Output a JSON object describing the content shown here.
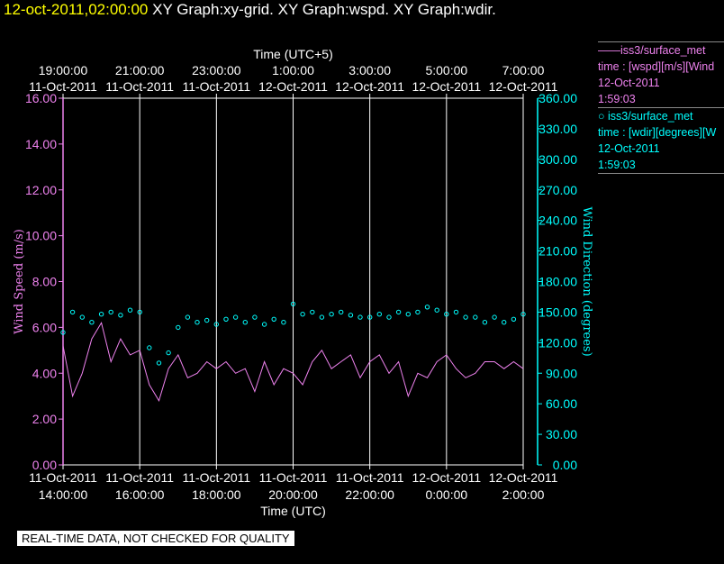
{
  "header": {
    "timestamp": "12-oct-2011,02:00:00",
    "graphs": "XY Graph:xy-grid.  XY Graph:wspd.  XY Graph:wdir."
  },
  "legend": [
    {
      "line1": "——iss3/surface_met",
      "line2": "time : [wspd][m/s][Wind",
      "line3": "12-Oct-2011",
      "line4": "1:59:03",
      "color": "#ee82ee"
    },
    {
      "line1": "○ iss3/surface_met",
      "line2": "time : [wdir][degrees][W",
      "line3": "12-Oct-2011",
      "line4": "1:59:03",
      "color": "#00ffff"
    }
  ],
  "footer": "REAL-TIME DATA, NOT CHECKED FOR QUALITY",
  "chart_data": {
    "type": "line",
    "colors": {
      "left_axis": "#ee82ee",
      "right_axis": "#00ffff",
      "grid": "#ffffff",
      "background": "#000000"
    },
    "top_axis_title": "Time (UTC+5)",
    "bottom_axis_title": "Time (UTC)",
    "ylabel_left": "Wind Speed (m/s)",
    "ylabel_right": "Wind Direction (degrees)",
    "x_range_hours": [
      14.0,
      26.0
    ],
    "ylim_left": [
      0,
      16
    ],
    "ylim_right": [
      0,
      360
    ],
    "grid": "vertical",
    "bottom_ticks": [
      {
        "date": "11-Oct-2011",
        "time": "14:00:00"
      },
      {
        "date": "11-Oct-2011",
        "time": "16:00:00"
      },
      {
        "date": "11-Oct-2011",
        "time": "18:00:00"
      },
      {
        "date": "11-Oct-2011",
        "time": "20:00:00"
      },
      {
        "date": "11-Oct-2011",
        "time": "22:00:00"
      },
      {
        "date": "12-Oct-2011",
        "time": "0:00:00"
      },
      {
        "date": "12-Oct-2011",
        "time": "2:00:00"
      }
    ],
    "top_ticks": [
      {
        "time": "19:00:00",
        "date": "11-Oct-2011"
      },
      {
        "time": "21:00:00",
        "date": "11-Oct-2011"
      },
      {
        "time": "23:00:00",
        "date": "11-Oct-2011"
      },
      {
        "time": "1:00:00",
        "date": "12-Oct-2011"
      },
      {
        "time": "3:00:00",
        "date": "12-Oct-2011"
      },
      {
        "time": "5:00:00",
        "date": "12-Oct-2011"
      },
      {
        "time": "7:00:00",
        "date": "12-Oct-2011"
      }
    ],
    "left_ticks": [
      "0.00",
      "2.00",
      "4.00",
      "6.00",
      "8.00",
      "10.00",
      "12.00",
      "14.00",
      "16.00"
    ],
    "right_ticks": [
      "0.00",
      "30.00",
      "60.00",
      "90.00",
      "120.00",
      "150.00",
      "180.00",
      "210.00",
      "240.00",
      "270.00",
      "300.00",
      "330.00",
      "360.00"
    ],
    "series": [
      {
        "name": "iss3/surface_met time : [wspd][m/s]",
        "style": "line",
        "axis": "left",
        "x_hours": [
          14.0,
          14.25,
          14.5,
          14.75,
          15.0,
          15.25,
          15.5,
          15.75,
          16.0,
          16.25,
          16.5,
          16.75,
          17.0,
          17.25,
          17.5,
          17.75,
          18.0,
          18.25,
          18.5,
          18.75,
          19.0,
          19.25,
          19.5,
          19.75,
          20.0,
          20.25,
          20.5,
          20.75,
          21.0,
          21.25,
          21.5,
          21.75,
          22.0,
          22.25,
          22.5,
          22.75,
          23.0,
          23.25,
          23.5,
          23.75,
          24.0,
          24.25,
          24.5,
          24.75,
          25.0,
          25.25,
          25.5,
          25.75,
          26.0
        ],
        "values": [
          5.2,
          3.0,
          4.0,
          5.5,
          6.2,
          4.5,
          5.5,
          4.8,
          5.0,
          3.5,
          2.8,
          4.2,
          4.8,
          3.8,
          4.0,
          4.5,
          4.2,
          4.5,
          4.0,
          4.2,
          3.2,
          4.5,
          3.5,
          4.2,
          4.0,
          3.5,
          4.5,
          5.0,
          4.2,
          4.5,
          4.8,
          3.8,
          4.5,
          4.8,
          4.0,
          4.5,
          3.0,
          4.0,
          3.8,
          4.5,
          4.8,
          4.2,
          3.8,
          4.0,
          4.5,
          4.5,
          4.2,
          4.5,
          4.2
        ]
      },
      {
        "name": "iss3/surface_met time : [wdir][degrees]",
        "style": "markers",
        "axis": "right",
        "x_hours": [
          14.0,
          14.25,
          14.5,
          14.75,
          15.0,
          15.25,
          15.5,
          15.75,
          16.0,
          16.25,
          16.5,
          16.75,
          17.0,
          17.25,
          17.5,
          17.75,
          18.0,
          18.25,
          18.5,
          18.75,
          19.0,
          19.25,
          19.5,
          19.75,
          20.0,
          20.25,
          20.5,
          20.75,
          21.0,
          21.25,
          21.5,
          21.75,
          22.0,
          22.25,
          22.5,
          22.75,
          23.0,
          23.25,
          23.5,
          23.75,
          24.0,
          24.25,
          24.5,
          24.75,
          25.0,
          25.25,
          25.5,
          25.75,
          26.0
        ],
        "values": [
          130,
          150,
          145,
          140,
          148,
          150,
          147,
          152,
          150,
          115,
          100,
          110,
          135,
          145,
          140,
          142,
          138,
          143,
          145,
          140,
          145,
          138,
          143,
          140,
          158,
          148,
          150,
          145,
          148,
          150,
          147,
          145,
          145,
          148,
          145,
          150,
          148,
          150,
          155,
          152,
          148,
          150,
          145,
          145,
          140,
          145,
          140,
          143,
          148
        ]
      }
    ]
  }
}
